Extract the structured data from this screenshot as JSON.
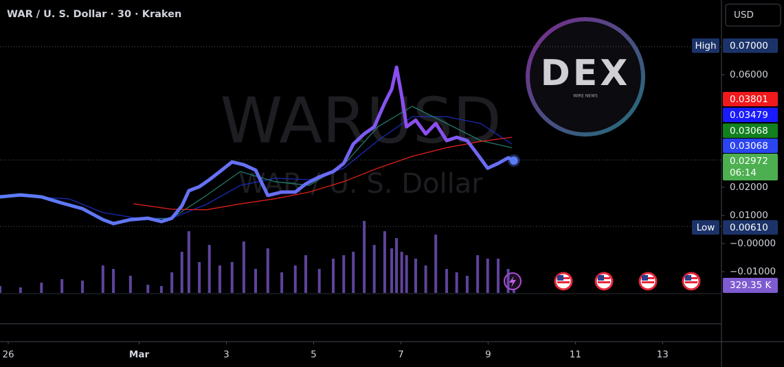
{
  "chart_data": {
    "type": "line",
    "title": "WAR / U. S. Dollar · 30 · Kraken",
    "currency": "USD",
    "watermark": "WARUSD",
    "watermark_subtitle": "WAR / U. S. Dollar",
    "logo": {
      "text": "DEX",
      "subtext": "WIRE NEWS"
    },
    "xlim": [
      -0.19,
      16.35
    ],
    "ylim": [
      -0.0178,
      0.0866
    ],
    "grid": false,
    "xticks": [
      {
        "value": 0,
        "label": "26"
      },
      {
        "value": 3,
        "label": "Mar"
      },
      {
        "value": 5,
        "label": "3"
      },
      {
        "value": 7,
        "label": "5"
      },
      {
        "value": 9,
        "label": "7"
      },
      {
        "value": 11,
        "label": "9"
      },
      {
        "value": 13,
        "label": "11"
      },
      {
        "value": 15,
        "label": "13"
      }
    ],
    "yticks": [
      {
        "value": 0.06,
        "label": "0.06000"
      },
      {
        "value": 0.02,
        "label": "0.02000"
      },
      {
        "value": 0.01,
        "label": "0.01000"
      },
      {
        "value": 0,
        "label": "−0.00000"
      },
      {
        "value": -0.01,
        "label": "−0.01000"
      }
    ],
    "series": [
      {
        "color": "#5b7cf7",
        "width": 5,
        "x": [
          -0.19,
          0.28,
          0.76,
          1.23,
          1.7,
          2.17,
          2.41,
          2.8,
          3.2,
          3.51,
          3.75,
          3.98,
          4.14,
          4.38,
          4.61,
          4.85,
          5.13,
          5.4,
          5.67,
          5.95,
          6.27,
          6.58,
          6.82,
          7.13,
          7.45,
          7.69,
          7.91,
          8.16,
          8.39,
          8.63,
          8.79,
          8.9,
          9.02,
          9.13,
          9.34,
          9.57,
          9.8,
          10.05,
          10.28,
          10.52,
          10.76,
          10.99,
          11.23,
          11.46,
          11.59
        ],
        "values": [
          0.0166,
          0.0173,
          0.0166,
          0.0144,
          0.0124,
          0.0085,
          0.0071,
          0.0085,
          0.009,
          0.0078,
          0.009,
          0.0134,
          0.0188,
          0.0202,
          0.0227,
          0.0256,
          0.029,
          0.028,
          0.0261,
          0.0171,
          0.0183,
          0.0183,
          0.0212,
          0.0237,
          0.0256,
          0.0285,
          0.0354,
          0.039,
          0.0415,
          0.05,
          0.0549,
          0.0627,
          0.0524,
          0.0415,
          0.0439,
          0.039,
          0.0427,
          0.0366,
          0.0378,
          0.0366,
          0.0317,
          0.0268,
          0.0285,
          0.0305,
          0.0295
        ]
      },
      {
        "color": "#e0201b",
        "width": 1.3,
        "x": [
          2.88,
          3.75,
          4.54,
          5.32,
          6.11,
          6.9,
          7.69,
          8.47,
          9.26,
          10.05,
          10.83,
          11.54
        ],
        "values": [
          0.0141,
          0.0122,
          0.012,
          0.0141,
          0.0159,
          0.0183,
          0.022,
          0.0268,
          0.031,
          0.0341,
          0.0363,
          0.0378
        ]
      },
      {
        "color": "#1f7a6c",
        "width": 1.3,
        "x": [
          2.96,
          3.75,
          4.54,
          5.32,
          6.11,
          6.9,
          7.69,
          8.47,
          9.26,
          10.05,
          10.83,
          11.54
        ],
        "values": [
          0.0085,
          0.009,
          0.0171,
          0.0256,
          0.022,
          0.0207,
          0.028,
          0.0415,
          0.0488,
          0.0427,
          0.0366,
          0.0341
        ]
      },
      {
        "color": "#1b2bb8",
        "width": 1.3,
        "x": [
          -0.19,
          1.39,
          2.17,
          2.96,
          3.75,
          4.54,
          5.32,
          6.11,
          6.9,
          7.69,
          8.47,
          9.26,
          10.05,
          10.83,
          11.54
        ],
        "values": [
          0.0171,
          0.0159,
          0.011,
          0.009,
          0.009,
          0.0139,
          0.0207,
          0.0232,
          0.0227,
          0.0268,
          0.0366,
          0.0451,
          0.0451,
          0.0427,
          0.0354
        ]
      }
    ],
    "volume": {
      "color": "#7e5bd0",
      "ylim": [
        0,
        7000000
      ],
      "x": [
        -0.19,
        0.28,
        0.76,
        1.23,
        1.7,
        2.17,
        2.41,
        2.8,
        3.2,
        3.51,
        3.75,
        3.98,
        4.14,
        4.38,
        4.61,
        4.85,
        5.13,
        5.4,
        5.67,
        5.95,
        6.27,
        6.58,
        6.82,
        7.13,
        7.45,
        7.69,
        7.91,
        8.16,
        8.39,
        8.63,
        8.79,
        8.9,
        9.02,
        9.13,
        9.34,
        9.57,
        9.8,
        10.05,
        10.28,
        10.52,
        10.76,
        10.99,
        11.23,
        11.46,
        11.59
      ],
      "values": [
        660000,
        528000,
        990000,
        1320000,
        1188000,
        2640000,
        2310000,
        1650000,
        792000,
        660000,
        1980000,
        3960000,
        5940000,
        2970000,
        4620000,
        2640000,
        2970000,
        4950000,
        2310000,
        4290000,
        1980000,
        2640000,
        3630000,
        2310000,
        3300000,
        3630000,
        3960000,
        6930000,
        4620000,
        5940000,
        4290000,
        5280000,
        3960000,
        3630000,
        3300000,
        2640000,
        5610000,
        2310000,
        1980000,
        1650000,
        3630000,
        3300000,
        3300000,
        2310000,
        329350
      ],
      "value_labels": [
        null,
        null,
        null,
        null,
        null,
        null,
        null,
        null,
        null,
        null,
        null,
        null,
        null,
        null,
        null,
        null,
        null,
        null,
        null,
        null,
        null,
        null,
        null,
        null,
        null,
        null,
        null,
        null,
        null,
        null,
        null,
        null,
        null,
        null,
        null,
        null,
        null,
        null,
        null,
        null,
        null,
        null,
        null,
        null,
        "329.35 K"
      ]
    },
    "high": {
      "tag": "High",
      "value": 0.07,
      "label": "0.07000"
    },
    "low": {
      "tag": "Low",
      "value": 0.0061,
      "label": "0.00610"
    },
    "current": {
      "value": 0.02972,
      "label": "0.02972",
      "countdown": "06:14",
      "color": "#4caf50"
    },
    "price_labels": [
      {
        "value": 0.03801,
        "label": "0.03801",
        "color": "#f0191c"
      },
      {
        "value": 0.03479,
        "label": "0.03479",
        "color": "#1a1aff"
      },
      {
        "value": 0.03068,
        "label": "0.03068",
        "color": "#12801f"
      },
      {
        "value": 0.03068,
        "label": "0.03068",
        "color": "#2b44f0"
      }
    ]
  }
}
